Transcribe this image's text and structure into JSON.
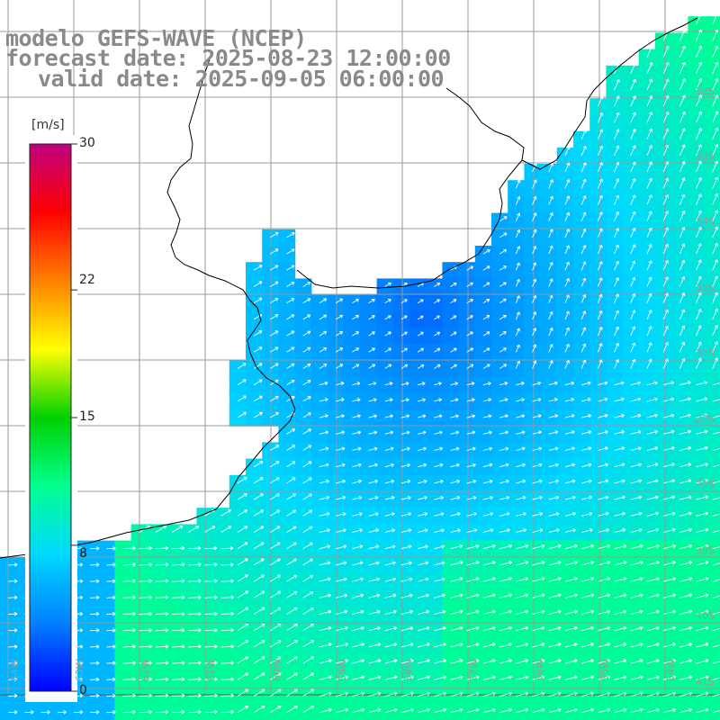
{
  "title": {
    "line1": "modelo GEFS-WAVE (NCEP)",
    "line2": "forecast date: 2025-08-23 12:00:00",
    "line3": "valid date: 2025-09-05 06:00:00"
  },
  "colorbar": {
    "unit": "[m/s]",
    "ticks": [
      "30",
      "22",
      "15",
      "8",
      "0"
    ],
    "tick_values": [
      30,
      22,
      15,
      8,
      0
    ],
    "colors": [
      "#0000ff",
      "#0080ff",
      "#00d8ff",
      "#00ff90",
      "#00d000",
      "#ffff00",
      "#ff8000",
      "#ff0000",
      "#c00080"
    ]
  },
  "map": {
    "variable": "wind speed with direction arrows",
    "lat_labels": [
      "32S",
      "33S",
      "34S",
      "35S",
      "36S",
      "37S",
      "38S",
      "39S",
      "40S",
      "41S"
    ],
    "lon_labels": [
      "64W",
      "63W",
      "62W",
      "61W",
      "60W",
      "59W",
      "58W",
      "57W",
      "56W",
      "55W",
      "54W"
    ],
    "wind_speed_range": [
      3,
      11
    ],
    "wind_direction": "predominantly from southwest toward northeast"
  }
}
